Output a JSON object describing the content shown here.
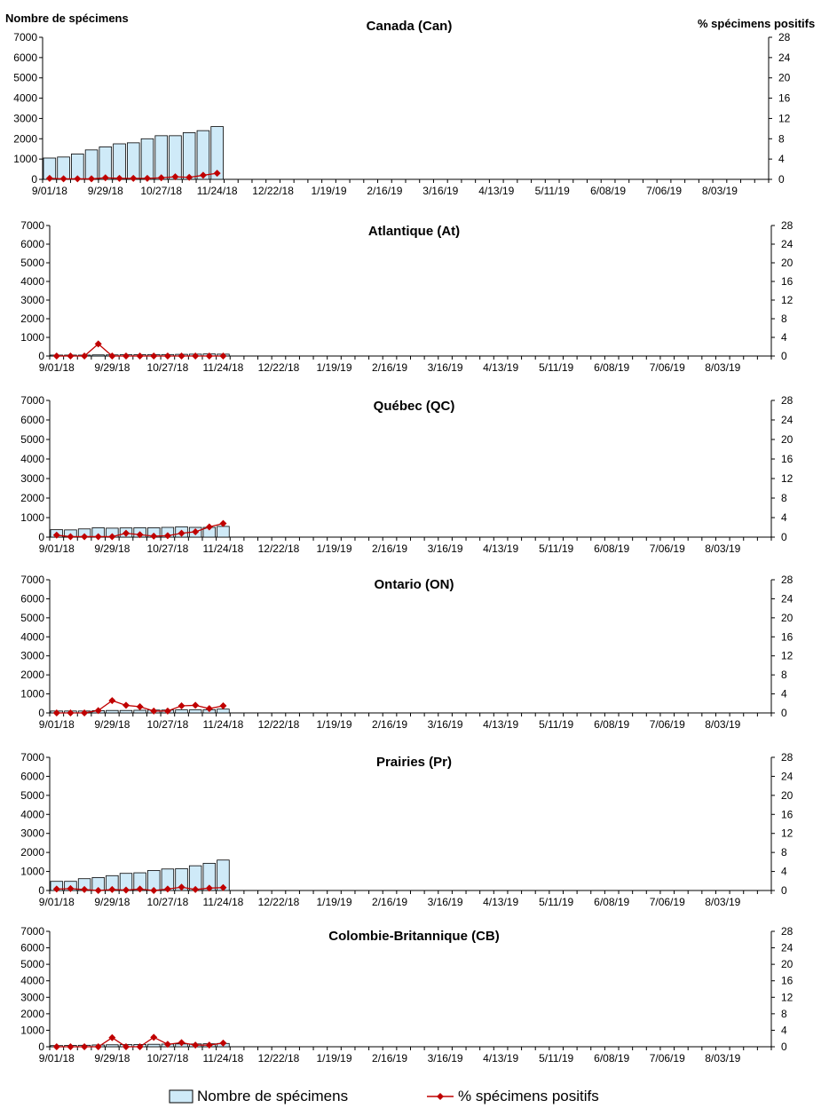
{
  "header": {
    "left_axis_title": "Nombre de spécimens",
    "right_axis_title": "% spécimens positifs"
  },
  "legend": {
    "bars_label": "Nombre de spécimens",
    "line_label": "% spécimens positifs"
  },
  "colors": {
    "bar_fill": "#cfeaf8",
    "bar_stroke": "#000000",
    "line": "#c00000"
  },
  "chart_data": [
    {
      "type": "bar",
      "title": "Canada (Can)",
      "x_tick_labels": [
        "9/01/18",
        "9/29/18",
        "10/27/18",
        "11/24/18",
        "12/22/18",
        "1/19/19",
        "2/16/19",
        "3/16/19",
        "4/13/19",
        "5/11/19",
        "6/08/19",
        "7/06/19",
        "8/03/19"
      ],
      "y_left_ticks": [
        "0",
        "1000",
        "2000",
        "3000",
        "4000",
        "5000",
        "6000",
        "7000"
      ],
      "y_right_ticks": [
        "0",
        "4",
        "8",
        "12",
        "16",
        "20",
        "24",
        "28"
      ],
      "y_left_range": [
        0,
        7000
      ],
      "y_right_range": [
        0,
        28
      ],
      "weeks": 52,
      "series": [
        {
          "name": "Nombre de spécimens",
          "type": "bar",
          "values": [
            1050,
            1100,
            1250,
            1450,
            1600,
            1750,
            1800,
            2000,
            2150,
            2150,
            2300,
            2400,
            2600
          ]
        },
        {
          "name": "% spécimens positifs",
          "type": "line",
          "axis": "right",
          "values": [
            0.2,
            0.1,
            0.1,
            0.1,
            0.3,
            0.2,
            0.2,
            0.2,
            0.3,
            0.5,
            0.4,
            0.8,
            1.2
          ]
        }
      ]
    },
    {
      "type": "bar",
      "title": "Atlantique (At)",
      "x_tick_labels": [
        "9/01/18",
        "9/29/18",
        "10/27/18",
        "11/24/18",
        "12/22/18",
        "1/19/19",
        "2/16/19",
        "3/16/19",
        "4/13/19",
        "5/11/19",
        "6/08/19",
        "7/06/19",
        "8/03/19"
      ],
      "y_left_ticks": [
        "0",
        "1000",
        "2000",
        "3000",
        "4000",
        "5000",
        "6000",
        "7000"
      ],
      "y_right_ticks": [
        "0",
        "4",
        "8",
        "12",
        "16",
        "20",
        "24",
        "28"
      ],
      "y_left_range": [
        0,
        7000
      ],
      "y_right_range": [
        0,
        28
      ],
      "weeks": 52,
      "series": [
        {
          "name": "Nombre de spécimens",
          "type": "bar",
          "values": [
            50,
            50,
            50,
            60,
            60,
            70,
            70,
            80,
            80,
            90,
            100,
            110,
            100
          ]
        },
        {
          "name": "% spécimens positifs",
          "type": "line",
          "axis": "right",
          "values": [
            0,
            0,
            0,
            2.6,
            0,
            0,
            0,
            0,
            0,
            0,
            0,
            0,
            0
          ]
        }
      ]
    },
    {
      "type": "bar",
      "title": "Québec (QC)",
      "x_tick_labels": [
        "9/01/18",
        "9/29/18",
        "10/27/18",
        "11/24/18",
        "12/22/18",
        "1/19/19",
        "2/16/19",
        "3/16/19",
        "4/13/19",
        "5/11/19",
        "6/08/19",
        "7/06/19",
        "8/03/19"
      ],
      "y_left_ticks": [
        "0",
        "1000",
        "2000",
        "3000",
        "4000",
        "5000",
        "6000",
        "7000"
      ],
      "y_right_ticks": [
        "0",
        "4",
        "8",
        "12",
        "16",
        "20",
        "24",
        "28"
      ],
      "y_left_range": [
        0,
        7000
      ],
      "y_right_range": [
        0,
        28
      ],
      "weeks": 52,
      "series": [
        {
          "name": "Nombre de spécimens",
          "type": "bar",
          "values": [
            380,
            370,
            420,
            480,
            460,
            470,
            480,
            480,
            500,
            530,
            500,
            500,
            550
          ]
        },
        {
          "name": "% spécimens positifs",
          "type": "line",
          "axis": "right",
          "values": [
            0.4,
            0.1,
            0.1,
            0.1,
            0.1,
            0.8,
            0.5,
            0.2,
            0.3,
            0.8,
            1.1,
            2.1,
            2.8
          ]
        }
      ]
    },
    {
      "type": "bar",
      "title": "Ontario (ON)",
      "x_tick_labels": [
        "9/01/18",
        "9/29/18",
        "10/27/18",
        "11/24/18",
        "12/22/18",
        "1/19/19",
        "2/16/19",
        "3/16/19",
        "4/13/19",
        "5/11/19",
        "6/08/19",
        "7/06/19",
        "8/03/19"
      ],
      "y_left_ticks": [
        "0",
        "1000",
        "2000",
        "3000",
        "4000",
        "5000",
        "6000",
        "7000"
      ],
      "y_right_ticks": [
        "0",
        "4",
        "8",
        "12",
        "16",
        "20",
        "24",
        "28"
      ],
      "y_left_range": [
        0,
        7000
      ],
      "y_right_range": [
        0,
        28
      ],
      "weeks": 52,
      "series": [
        {
          "name": "Nombre de spécimens",
          "type": "bar",
          "values": [
            100,
            100,
            100,
            120,
            130,
            130,
            140,
            150,
            150,
            160,
            160,
            170,
            200
          ]
        },
        {
          "name": "% spécimens positifs",
          "type": "line",
          "axis": "right",
          "values": [
            0,
            0,
            0,
            0.5,
            2.6,
            1.6,
            1.3,
            0.4,
            0.4,
            1.5,
            1.6,
            0.9,
            1.5
          ]
        }
      ]
    },
    {
      "type": "bar",
      "title": "Prairies (Pr)",
      "x_tick_labels": [
        "9/01/18",
        "9/29/18",
        "10/27/18",
        "11/24/18",
        "12/22/18",
        "1/19/19",
        "2/16/19",
        "3/16/19",
        "4/13/19",
        "5/11/19",
        "6/08/19",
        "7/06/19",
        "8/03/19"
      ],
      "y_left_ticks": [
        "0",
        "1000",
        "2000",
        "3000",
        "4000",
        "5000",
        "6000",
        "7000"
      ],
      "y_right_ticks": [
        "0",
        "4",
        "8",
        "12",
        "16",
        "20",
        "24",
        "28"
      ],
      "y_left_range": [
        0,
        7000
      ],
      "y_right_range": [
        0,
        28
      ],
      "weeks": 52,
      "series": [
        {
          "name": "Nombre de spécimens",
          "type": "bar",
          "values": [
            480,
            480,
            620,
            680,
            780,
            900,
            930,
            1050,
            1130,
            1150,
            1300,
            1430,
            1600
          ]
        },
        {
          "name": "% spécimens positifs",
          "type": "line",
          "axis": "right",
          "values": [
            0.3,
            0.4,
            0.2,
            0,
            0.2,
            0.1,
            0.3,
            0,
            0.3,
            0.7,
            0.2,
            0.5,
            0.6
          ]
        }
      ]
    },
    {
      "type": "bar",
      "title": "Colombie-Britannique (CB)",
      "x_tick_labels": [
        "9/01/18",
        "9/29/18",
        "10/27/18",
        "11/24/18",
        "12/22/18",
        "1/19/19",
        "2/16/19",
        "3/16/19",
        "4/13/19",
        "5/11/19",
        "6/08/19",
        "7/06/19",
        "8/03/19"
      ],
      "y_left_ticks": [
        "0",
        "1000",
        "2000",
        "3000",
        "4000",
        "5000",
        "6000",
        "7000"
      ],
      "y_right_ticks": [
        "0",
        "4",
        "8",
        "12",
        "16",
        "20",
        "24",
        "28"
      ],
      "y_left_range": [
        0,
        7000
      ],
      "y_right_range": [
        0,
        28
      ],
      "weeks": 52,
      "series": [
        {
          "name": "Nombre de spécimens",
          "type": "bar",
          "values": [
            70,
            80,
            90,
            110,
            120,
            130,
            140,
            150,
            160,
            170,
            170,
            180,
            200
          ]
        },
        {
          "name": "% spécimens positifs",
          "type": "line",
          "axis": "right",
          "values": [
            0,
            0,
            0,
            0,
            2.2,
            0,
            0,
            2.3,
            0.6,
            1,
            0.4,
            0.4,
            0.9
          ]
        }
      ]
    }
  ]
}
